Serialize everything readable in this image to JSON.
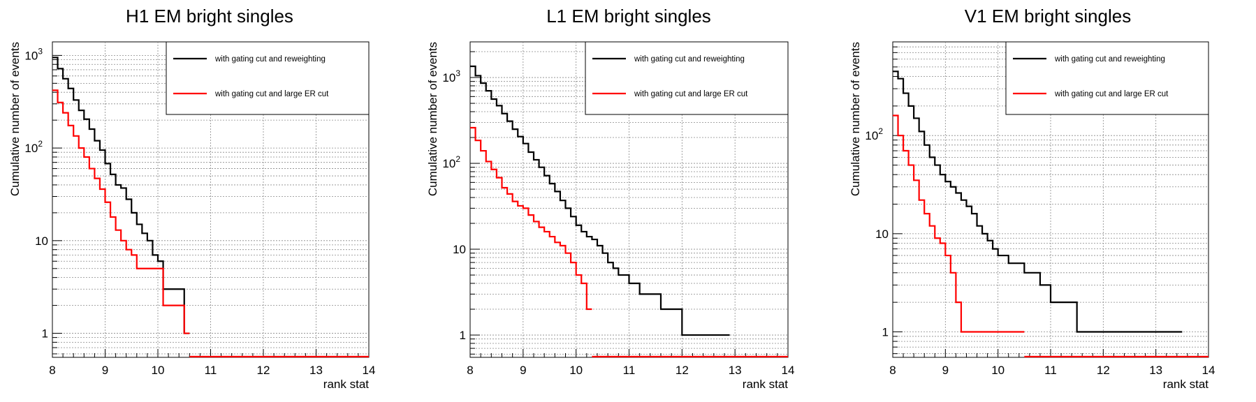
{
  "colors": {
    "reweighting": "#000000",
    "large_er": "#ff0000"
  },
  "chart_data": [
    {
      "type": "line",
      "title": "H1 EM bright singles",
      "xlabel": "rank stat",
      "ylabel": "Cumulative number of events",
      "xlim": [
        8,
        14
      ],
      "ylim": [
        0.55,
        1400
      ],
      "yscale": "log",
      "grid": true,
      "legend_position": "top-right",
      "x_ticks": [
        "8",
        "9",
        "10",
        "11",
        "12",
        "13",
        "14"
      ],
      "y_ticks": [
        {
          "value": 1,
          "label": "1"
        },
        {
          "value": 10,
          "label": "10"
        },
        {
          "value": 100,
          "label": "10",
          "exp": "2"
        },
        {
          "value": 1000,
          "label": "10",
          "exp": "3"
        }
      ],
      "series": [
        {
          "name": "with gating cut and reweighting",
          "color": "#000000",
          "bin_edges": [
            8.0,
            8.1,
            8.2,
            8.3,
            8.4,
            8.5,
            8.6,
            8.7,
            8.8,
            8.9,
            9.0,
            9.1,
            9.2,
            9.3,
            9.4,
            9.5,
            9.6,
            9.7,
            9.8,
            9.9,
            10.0,
            10.1,
            10.2,
            10.3,
            10.4,
            10.5,
            10.6
          ],
          "values": [
            950,
            720,
            560,
            440,
            330,
            255,
            205,
            160,
            120,
            95,
            68,
            52,
            40,
            37,
            28,
            20,
            15,
            12,
            10,
            7,
            6,
            3,
            3,
            3,
            3,
            1
          ]
        },
        {
          "name": "with gating cut and large ER cut",
          "color": "#ff0000",
          "bin_edges": [
            8.0,
            8.1,
            8.2,
            8.3,
            8.4,
            8.5,
            8.6,
            8.7,
            8.8,
            8.9,
            9.0,
            9.1,
            9.2,
            9.3,
            9.4,
            9.5,
            9.6,
            9.7,
            9.8,
            9.9,
            10.0,
            10.1,
            10.2,
            10.3,
            10.4,
            10.5,
            10.6
          ],
          "values": [
            420,
            310,
            240,
            175,
            135,
            100,
            80,
            60,
            47,
            36,
            26,
            18,
            13,
            10,
            8,
            7,
            5,
            5,
            5,
            5,
            5,
            2,
            2,
            2,
            2,
            1
          ]
        }
      ]
    },
    {
      "type": "line",
      "title": "L1 EM bright singles",
      "xlabel": "rank stat",
      "ylabel": "Cumulative number of events",
      "xlim": [
        8,
        14
      ],
      "ylim": [
        0.55,
        2600
      ],
      "yscale": "log",
      "grid": true,
      "legend_position": "top-right",
      "x_ticks": [
        "8",
        "9",
        "10",
        "11",
        "12",
        "13",
        "14"
      ],
      "y_ticks": [
        {
          "value": 1,
          "label": "1"
        },
        {
          "value": 10,
          "label": "10"
        },
        {
          "value": 100,
          "label": "10",
          "exp": "2"
        },
        {
          "value": 1000,
          "label": "10",
          "exp": "3"
        }
      ],
      "series": [
        {
          "name": "with gating cut and reweighting",
          "color": "#000000",
          "bin_edges": [
            8.0,
            8.1,
            8.2,
            8.3,
            8.4,
            8.5,
            8.6,
            8.7,
            8.8,
            8.9,
            9.0,
            9.1,
            9.2,
            9.3,
            9.4,
            9.5,
            9.6,
            9.7,
            9.8,
            9.9,
            10.0,
            10.1,
            10.2,
            10.3,
            10.4,
            10.5,
            10.6,
            10.7,
            10.8,
            10.9,
            11.0,
            11.2,
            11.4,
            11.6,
            11.8,
            12.0,
            12.2,
            12.4,
            12.9
          ],
          "values": [
            1350,
            1050,
            860,
            700,
            560,
            470,
            380,
            310,
            250,
            205,
            170,
            135,
            110,
            90,
            72,
            58,
            47,
            37,
            30,
            24,
            19,
            16,
            14,
            13,
            11,
            9,
            7,
            6,
            5,
            5,
            4,
            3,
            3,
            2,
            2,
            1,
            1,
            1
          ]
        },
        {
          "name": "with gating cut and large ER cut",
          "color": "#ff0000",
          "bin_edges": [
            8.0,
            8.1,
            8.2,
            8.3,
            8.4,
            8.5,
            8.6,
            8.7,
            8.8,
            8.9,
            9.0,
            9.1,
            9.2,
            9.3,
            9.4,
            9.5,
            9.6,
            9.7,
            9.8,
            9.9,
            10.0,
            10.1,
            10.2,
            10.3
          ],
          "values": [
            260,
            185,
            140,
            105,
            85,
            68,
            52,
            44,
            36,
            32,
            30,
            25,
            21,
            18,
            16,
            14,
            12,
            11,
            9,
            7,
            5,
            4,
            2
          ]
        }
      ]
    },
    {
      "type": "line",
      "title": "V1 EM bright singles",
      "xlabel": "rank stat",
      "ylabel": "Cumulative number of events",
      "xlim": [
        8,
        14
      ],
      "ylim": [
        0.55,
        900
      ],
      "yscale": "log",
      "grid": true,
      "legend_position": "top-right",
      "x_ticks": [
        "8",
        "9",
        "10",
        "11",
        "12",
        "13",
        "14"
      ],
      "y_ticks": [
        {
          "value": 1,
          "label": "1"
        },
        {
          "value": 10,
          "label": "10"
        },
        {
          "value": 100,
          "label": "10",
          "exp": "2"
        }
      ],
      "series": [
        {
          "name": "with gating cut and reweighting",
          "color": "#000000",
          "bin_edges": [
            8.0,
            8.1,
            8.2,
            8.3,
            8.4,
            8.5,
            8.6,
            8.7,
            8.8,
            8.9,
            9.0,
            9.1,
            9.2,
            9.3,
            9.4,
            9.5,
            9.6,
            9.7,
            9.8,
            9.9,
            10.0,
            10.2,
            10.5,
            10.8,
            11.0,
            11.5,
            13.0,
            13.5
          ],
          "values": [
            450,
            380,
            270,
            200,
            150,
            110,
            80,
            60,
            50,
            40,
            34,
            30,
            26,
            22,
            19,
            16,
            12,
            10,
            8.5,
            7,
            6,
            5,
            4,
            3,
            2,
            1,
            1
          ]
        },
        {
          "name": "with gating cut and large ER cut",
          "color": "#ff0000",
          "bin_edges": [
            8.0,
            8.1,
            8.2,
            8.3,
            8.4,
            8.5,
            8.6,
            8.7,
            8.8,
            8.9,
            9.0,
            9.1,
            9.2,
            9.3,
            10.5
          ],
          "values": [
            160,
            100,
            70,
            50,
            35,
            22,
            16,
            12,
            9,
            8,
            6,
            4,
            2,
            1
          ]
        }
      ]
    }
  ]
}
